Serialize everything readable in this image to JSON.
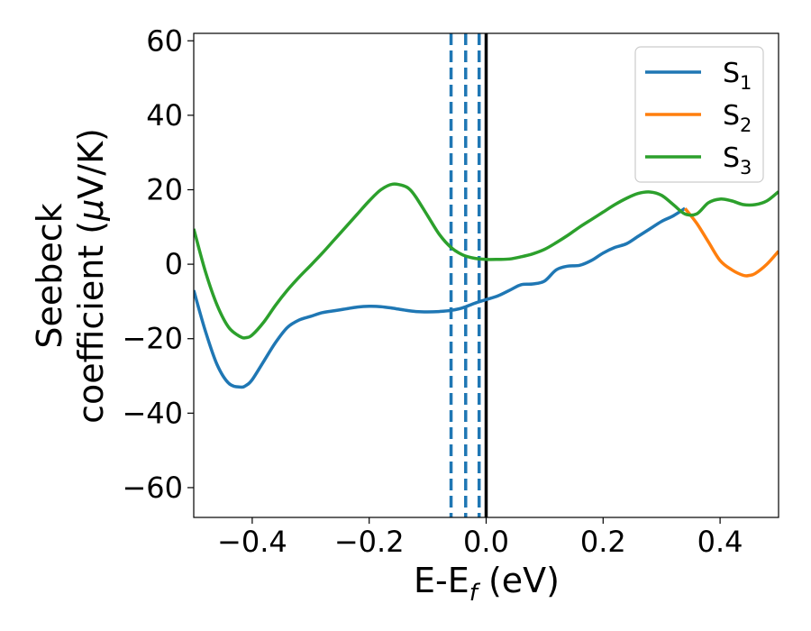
{
  "chart_data": {
    "type": "line",
    "title": "",
    "xlabel": {
      "main": "E-E",
      "sub": "f",
      "rest": " (eV)"
    },
    "ylabel": {
      "line1": "Seebeck",
      "line2": "coefficient  (",
      "mu": "μ",
      "unit": "V/K)"
    },
    "xlim": [
      -0.5,
      0.5
    ],
    "ylim": [
      -68,
      62
    ],
    "xticks": [
      -0.4,
      -0.2,
      0.0,
      0.2,
      0.4
    ],
    "xtick_labels": [
      "−0.4",
      "−0.2",
      "0.0",
      "0.2",
      "0.4"
    ],
    "yticks": [
      -60,
      -40,
      -20,
      0,
      20,
      40,
      60
    ],
    "ytick_labels": [
      "−60",
      "−40",
      "−20",
      "0",
      "20",
      "40",
      "60"
    ],
    "grid": false,
    "legend_position": "top-right",
    "series": [
      {
        "name": "S",
        "sub": "1",
        "color": "#1f77b4",
        "x": [
          -0.5,
          -0.48,
          -0.46,
          -0.44,
          -0.42,
          -0.41,
          -0.4,
          -0.38,
          -0.36,
          -0.34,
          -0.32,
          -0.3,
          -0.28,
          -0.26,
          -0.24,
          -0.22,
          -0.2,
          -0.18,
          -0.16,
          -0.14,
          -0.12,
          -0.1,
          -0.08,
          -0.06,
          -0.04,
          -0.02,
          0.0,
          0.02,
          0.04,
          0.06,
          0.08,
          0.1,
          0.12,
          0.14,
          0.16,
          0.18,
          0.2,
          0.22,
          0.24,
          0.26,
          0.28,
          0.3,
          0.32,
          0.34
        ],
        "y": [
          -7,
          -18,
          -27,
          -32,
          -33,
          -32.5,
          -31,
          -26,
          -21,
          -17,
          -15,
          -14,
          -13,
          -12.5,
          -12,
          -11.5,
          -11.3,
          -11.4,
          -11.8,
          -12.3,
          -12.7,
          -12.8,
          -12.7,
          -12.4,
          -11.7,
          -10.5,
          -9.5,
          -8.5,
          -7,
          -5.5,
          -5.3,
          -4.5,
          -1.5,
          -0.5,
          -0.3,
          1,
          3,
          4.5,
          5.5,
          7.5,
          9.5,
          11.5,
          13,
          15
        ]
      },
      {
        "name": "S",
        "sub": "2",
        "color": "#ff7f0e",
        "x": [
          0.34,
          0.36,
          0.38,
          0.4,
          0.42,
          0.44,
          0.45,
          0.46,
          0.48,
          0.5
        ],
        "y": [
          15,
          11,
          6,
          1,
          -1.5,
          -3,
          -3,
          -2.5,
          0,
          3.5
        ]
      },
      {
        "name": "S",
        "sub": "3",
        "color": "#2ca02c",
        "x": [
          -0.5,
          -0.48,
          -0.46,
          -0.44,
          -0.42,
          -0.41,
          -0.4,
          -0.38,
          -0.36,
          -0.34,
          -0.32,
          -0.3,
          -0.28,
          -0.26,
          -0.24,
          -0.22,
          -0.2,
          -0.18,
          -0.16,
          -0.14,
          -0.13,
          -0.12,
          -0.1,
          -0.08,
          -0.06,
          -0.04,
          -0.02,
          0.0,
          0.02,
          0.04,
          0.06,
          0.08,
          0.1,
          0.12,
          0.14,
          0.16,
          0.18,
          0.2,
          0.22,
          0.24,
          0.26,
          0.28,
          0.3,
          0.32,
          0.34,
          0.36,
          0.38,
          0.4,
          0.42,
          0.44,
          0.46,
          0.48,
          0.5
        ],
        "y": [
          9.5,
          -2,
          -11,
          -17,
          -19.5,
          -19.7,
          -19,
          -15.5,
          -11,
          -7,
          -3.5,
          -0.3,
          3,
          6.5,
          10,
          13.5,
          17,
          20,
          21.5,
          21,
          20,
          18,
          13,
          8,
          4.5,
          2.5,
          1.6,
          1.3,
          1.3,
          1.4,
          2,
          2.8,
          4,
          5.8,
          7.8,
          10,
          12,
          14,
          16,
          17.7,
          19,
          19.4,
          18.5,
          16,
          13.5,
          13.5,
          16.5,
          17.5,
          17,
          16,
          16,
          17,
          19.5
        ]
      }
    ],
    "vlines": [
      {
        "x": -0.06,
        "style": "dashed",
        "color": "#1f77b4"
      },
      {
        "x": -0.035,
        "style": "dashed",
        "color": "#1f77b4"
      },
      {
        "x": -0.012,
        "style": "dashed",
        "color": "#1f77b4"
      },
      {
        "x": 0.0,
        "style": "solid",
        "color": "#000000"
      }
    ]
  }
}
